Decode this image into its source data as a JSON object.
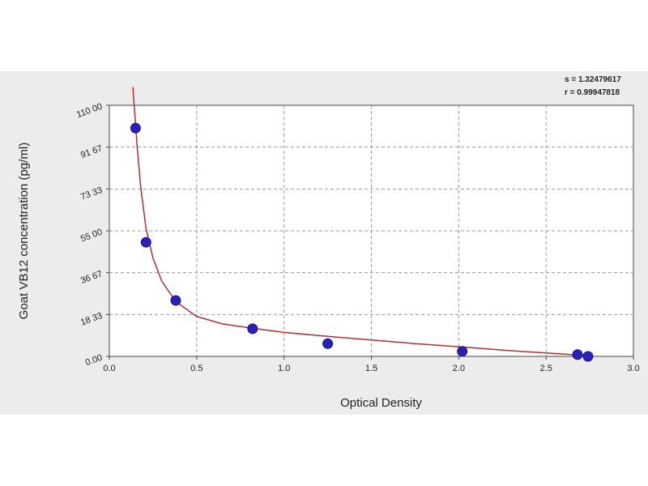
{
  "chart_data": {
    "type": "scatter",
    "title": "",
    "xlabel": "Optical Density",
    "ylabel": "Goat VB12 concentration (pg/ml)",
    "xlim": [
      0,
      3.0
    ],
    "ylim": [
      0,
      11000
    ],
    "x_ticks": [
      {
        "value": 0.0,
        "label": "0.0"
      },
      {
        "value": 0.5,
        "label": "0.5"
      },
      {
        "value": 1.0,
        "label": "1.0"
      },
      {
        "value": 1.5,
        "label": "1.5"
      },
      {
        "value": 2.0,
        "label": "2.0"
      },
      {
        "value": 2.5,
        "label": "2.5"
      },
      {
        "value": 3.0,
        "label": "3.0"
      }
    ],
    "y_ticks": [
      {
        "value": 0,
        "label": "0.00"
      },
      {
        "value": 1833,
        "label": "18 33"
      },
      {
        "value": 3667,
        "label": "36 67"
      },
      {
        "value": 5500,
        "label": "55 00"
      },
      {
        "value": 7333,
        "label": "73 33"
      },
      {
        "value": 9167,
        "label": "91 67"
      },
      {
        "value": 11000,
        "label": "110 00"
      }
    ],
    "grid": true,
    "series": [
      {
        "type": "scatter",
        "color": "#2a1fb8",
        "x": [
          0.15,
          0.21,
          0.38,
          0.82,
          1.25,
          2.02,
          2.68,
          2.74
        ],
        "y": [
          10000,
          5000,
          2450,
          1210,
          560,
          220,
          80,
          0
        ]
      },
      {
        "type": "line",
        "color": "#b03030",
        "x": [
          0.135,
          0.14,
          0.15,
          0.16,
          0.18,
          0.21,
          0.25,
          0.3,
          0.38,
          0.5,
          0.65,
          0.82,
          1.0,
          1.25,
          1.5,
          1.75,
          2.02,
          2.3,
          2.5,
          2.68,
          2.74
        ],
        "y": [
          11800,
          11200,
          10200,
          9100,
          7400,
          5600,
          4300,
          3300,
          2400,
          1750,
          1420,
          1230,
          1050,
          880,
          720,
          560,
          410,
          250,
          150,
          60,
          25
        ]
      }
    ],
    "annotations": [
      {
        "text": "s = 1.32479617",
        "position": "top-right"
      },
      {
        "text": "r = 0.99947818",
        "position": "top-right"
      }
    ]
  }
}
